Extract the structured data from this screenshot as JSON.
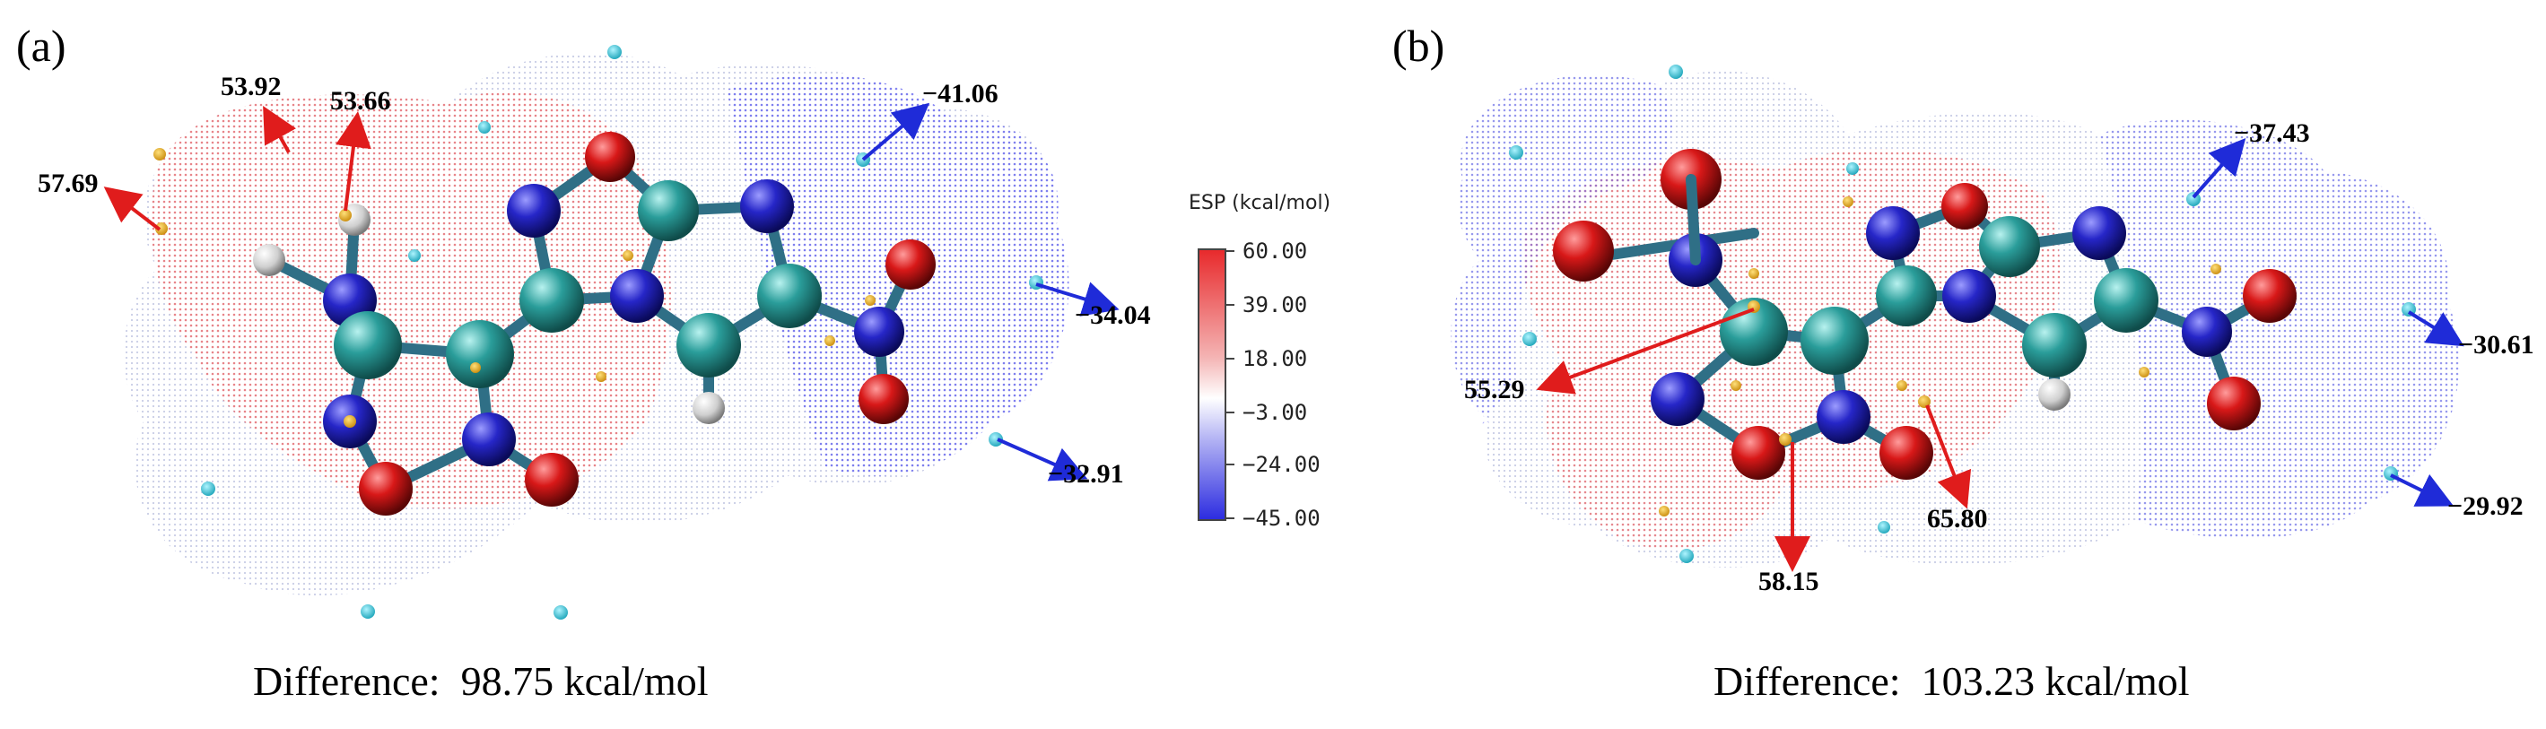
{
  "panels": [
    {
      "label": "(a)",
      "caption": "Difference:  98.75 kcal/mol",
      "maxima": [
        "57.69",
        "53.92",
        "53.66"
      ],
      "minima": [
        "−41.06",
        "−34.04",
        "−32.91"
      ]
    },
    {
      "label": "(b)",
      "caption": "Difference:  103.23 kcal/mol",
      "maxima": [
        "55.29",
        "58.15",
        "65.80"
      ],
      "minima": [
        "−37.43",
        "−30.61",
        "−29.92"
      ]
    }
  ],
  "colorbar": {
    "title": "ESP (kcal/mol)",
    "ticks": [
      "60.00",
      "39.00",
      "18.00",
      "−3.00",
      "−24.00",
      "−45.00"
    ]
  },
  "colors": {
    "positive": "#e8292b",
    "negative": "#2b2be0",
    "carbon": "#2a9d9a",
    "nitrogen": "#2626c8",
    "oxygen": "#d81818",
    "hydrogen": "#d8d8d8",
    "maximum_point": "#e7a81e",
    "minimum_point": "#2fc4d8"
  }
}
